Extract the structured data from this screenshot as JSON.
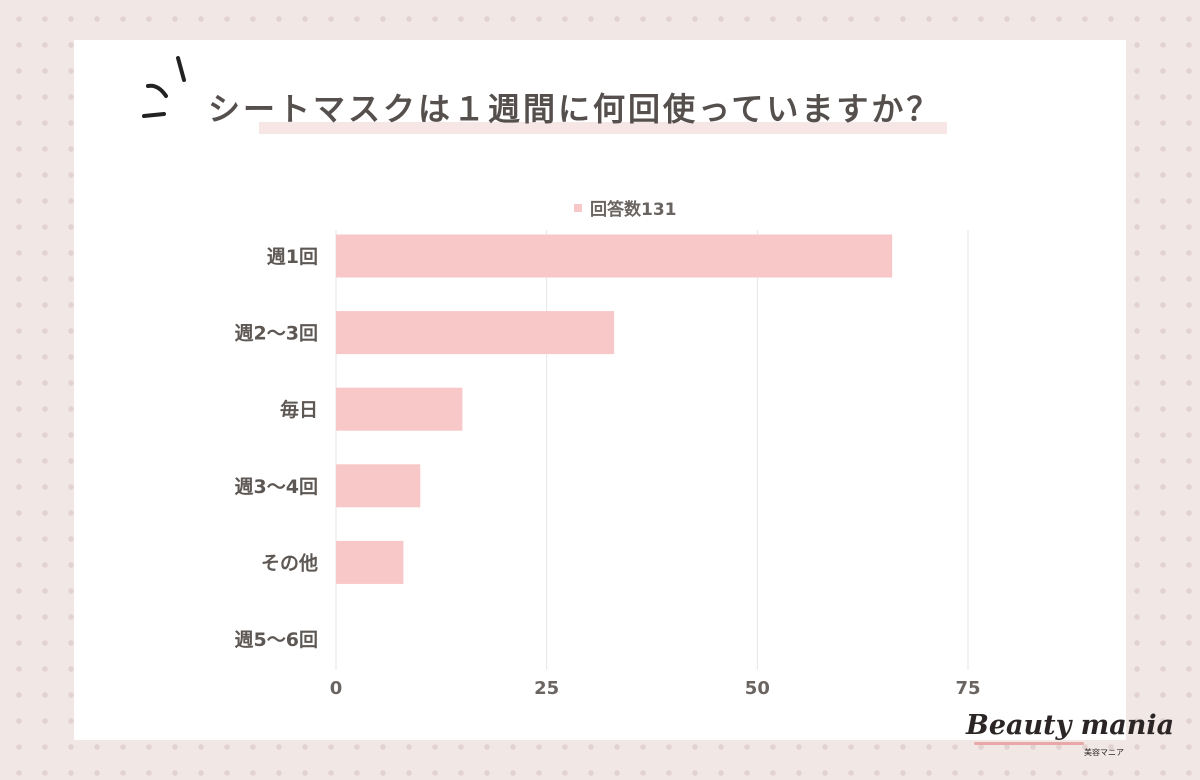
{
  "title": "シートマスクは１週間に何回使っていますか？",
  "logo": {
    "text": "Beauty mania",
    "sub": "美容マニア"
  },
  "chart_data": {
    "type": "bar",
    "orientation": "horizontal",
    "title": "シートマスクは１週間に何回使っていますか？",
    "categories": [
      "週1回",
      "週2〜3回",
      "毎日",
      "週3〜4回",
      "その他",
      "週5〜6回"
    ],
    "series": [
      {
        "name": "回答数131",
        "values": [
          66,
          33,
          15,
          10,
          8,
          0
        ]
      }
    ],
    "xlim": [
      0,
      75
    ],
    "xticks": [
      0,
      25,
      50,
      75
    ],
    "grid": true,
    "legend": "top-center",
    "color": "#f8c7c7"
  }
}
